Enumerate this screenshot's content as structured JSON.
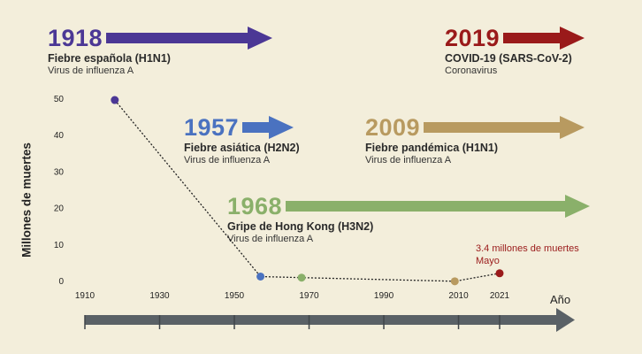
{
  "chart_data": {
    "type": "line",
    "title": "",
    "ylabel": "Millones de muertes",
    "xlabel": "Año",
    "xlim": [
      1910,
      2021
    ],
    "ylim": [
      0,
      50
    ],
    "x_ticks": [
      "1910",
      "1930",
      "1950",
      "1970",
      "1990",
      "2010",
      "2021"
    ],
    "y_ticks": [
      "50",
      "40",
      "30",
      "20",
      "10",
      "0"
    ],
    "grid": false,
    "series": [
      {
        "points": [
          {
            "x": 1918,
            "y": 49.5,
            "color": "#4b3795"
          },
          {
            "x": 1957,
            "y": 1.1,
            "color": "#4a72c0"
          },
          {
            "x": 1968,
            "y": 0.8,
            "color": "#8ab06a"
          },
          {
            "x": 2009,
            "y": -0.2,
            "color": "#b89a60"
          },
          {
            "x": 2021,
            "y": 2.0,
            "color": "#9a1a1a"
          }
        ]
      }
    ],
    "annotation": {
      "line1": "3.4 millones de muertes",
      "line2": "Mayo"
    }
  },
  "pandemics": [
    {
      "year": "1918",
      "name": "Fiebre española (H1N1)",
      "virus": "Virus de influenza A",
      "color": "#4b3795"
    },
    {
      "year": "2019",
      "name": "COVID-19 (SARS-CoV-2)",
      "virus": "Coronavirus",
      "color": "#9a1a1a"
    },
    {
      "year": "1957",
      "name": "Fiebre asiática (H2N2)",
      "virus": "Virus de influenza A",
      "color": "#4a72c0"
    },
    {
      "year": "2009",
      "name": "Fiebre pandémica (H1N1)",
      "virus": "Virus de influenza A",
      "color": "#b89a60"
    },
    {
      "year": "1968",
      "name": "Gripe de Hong Kong (H3N2)",
      "virus": "Virus de influenza A",
      "color": "#8ab06a"
    }
  ],
  "colors": {
    "background": "#f3eedb",
    "timeline": "#5a6166",
    "trend_line": "#222222"
  }
}
